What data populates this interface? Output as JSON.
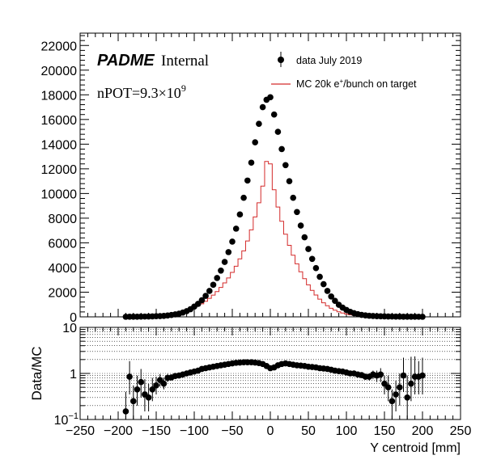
{
  "chart_data": [
    {
      "type": "scatter",
      "panel": "main",
      "xlim": [
        -250,
        250
      ],
      "ylim": [
        0,
        23000
      ],
      "y_ticks": [
        0,
        2000,
        4000,
        6000,
        8000,
        10000,
        12000,
        14000,
        16000,
        18000,
        20000,
        22000
      ],
      "labels": {
        "brand": "PADME",
        "internal": "Internal",
        "npot_prefix": "nPOT=9.3×10",
        "npot_exp": "9"
      },
      "legend": {
        "placement": "top-right",
        "data_label": "data July 2019",
        "mc_label_pre": "MC 20k e",
        "mc_label_sup": "+",
        "mc_label_post": "/bunch on target"
      },
      "series": [
        {
          "name": "data July 2019",
          "style": "markers",
          "color": "#000000",
          "x": [
            -190,
            -185,
            -180,
            -175,
            -170,
            -165,
            -160,
            -155,
            -150,
            -145,
            -140,
            -135,
            -130,
            -125,
            -120,
            -115,
            -110,
            -105,
            -100,
            -95,
            -90,
            -85,
            -80,
            -75,
            -70,
            -65,
            -60,
            -55,
            -50,
            -45,
            -40,
            -35,
            -30,
            -25,
            -20,
            -15,
            -10,
            -5,
            0,
            5,
            10,
            15,
            20,
            25,
            30,
            35,
            40,
            45,
            50,
            55,
            60,
            65,
            70,
            75,
            80,
            85,
            90,
            95,
            100,
            105,
            110,
            115,
            120,
            125,
            130,
            135,
            140,
            145,
            150,
            155,
            160,
            165,
            170,
            175,
            180,
            185,
            190,
            195,
            200
          ],
          "y": [
            8,
            10,
            12,
            15,
            20,
            25,
            30,
            40,
            50,
            60,
            80,
            110,
            150,
            200,
            260,
            350,
            460,
            620,
            830,
            1050,
            1350,
            1700,
            2100,
            2600,
            3150,
            3750,
            4450,
            5250,
            6100,
            7150,
            8300,
            9650,
            11050,
            12500,
            14150,
            15650,
            17000,
            17600,
            17800,
            16400,
            15000,
            13600,
            12300,
            11000,
            9650,
            8500,
            7400,
            6450,
            5500,
            4700,
            3950,
            3250,
            2650,
            2100,
            1650,
            1300,
            980,
            750,
            560,
            410,
            300,
            220,
            160,
            120,
            90,
            70,
            55,
            45,
            38,
            30,
            25,
            22,
            18,
            15,
            13,
            11,
            10,
            9,
            8
          ]
        },
        {
          "name": "MC 20k e+/bunch on target",
          "style": "step",
          "color": "#d42a2a",
          "x": [
            -190,
            -185,
            -180,
            -175,
            -170,
            -165,
            -160,
            -155,
            -150,
            -145,
            -140,
            -135,
            -130,
            -125,
            -120,
            -115,
            -110,
            -105,
            -100,
            -95,
            -90,
            -85,
            -80,
            -75,
            -70,
            -65,
            -60,
            -55,
            -50,
            -45,
            -40,
            -35,
            -30,
            -25,
            -20,
            -15,
            -10,
            -5,
            0,
            5,
            10,
            15,
            20,
            25,
            30,
            35,
            40,
            45,
            50,
            55,
            60,
            65,
            70,
            75,
            80,
            85,
            90,
            95,
            100,
            105,
            110,
            115,
            120,
            125,
            130,
            135,
            140,
            145,
            150,
            155,
            160,
            165,
            170,
            175,
            180,
            185,
            190,
            195,
            200
          ],
          "y": [
            10,
            12,
            14,
            18,
            22,
            28,
            34,
            42,
            55,
            70,
            90,
            120,
            160,
            210,
            280,
            360,
            460,
            580,
            720,
            880,
            1060,
            1260,
            1500,
            1760,
            2050,
            2380,
            2750,
            3150,
            3600,
            4100,
            4700,
            5350,
            6150,
            7050,
            8100,
            9250,
            10600,
            12600,
            12400,
            10300,
            8900,
            7750,
            6700,
            5800,
            5000,
            4300,
            3650,
            3100,
            2600,
            2150,
            1770,
            1430,
            1140,
            900,
            700,
            540,
            410,
            310,
            230,
            170,
            120,
            90,
            65,
            48,
            36,
            28,
            22,
            18,
            15,
            13,
            11,
            10,
            9,
            8,
            8,
            7,
            7,
            6,
            6
          ]
        }
      ]
    },
    {
      "type": "scatter",
      "panel": "ratio",
      "xlabel": "Y centroid [mm]",
      "ylabel": "Data/MC",
      "xlim": [
        -250,
        250
      ],
      "ylim": [
        0.1,
        10
      ],
      "yscale": "log",
      "grid": true,
      "x_ticks": [
        -250,
        -200,
        -150,
        -100,
        -50,
        0,
        50,
        100,
        150,
        200,
        250
      ],
      "y_ticks": [
        {
          "value": 0.1,
          "base": "10",
          "exp": "−1"
        },
        {
          "value": 1,
          "base": "1",
          "exp": ""
        },
        {
          "value": 10,
          "base": "10",
          "exp": ""
        }
      ],
      "series": [
        {
          "name": "Data/MC",
          "color": "#000000",
          "x": [
            -190,
            -185,
            -180,
            -175,
            -170,
            -165,
            -160,
            -155,
            -150,
            -145,
            -140,
            -135,
            -130,
            -125,
            -120,
            -115,
            -110,
            -105,
            -100,
            -95,
            -90,
            -85,
            -80,
            -75,
            -70,
            -65,
            -60,
            -55,
            -50,
            -45,
            -40,
            -35,
            -30,
            -25,
            -20,
            -15,
            -10,
            -5,
            0,
            5,
            10,
            15,
            20,
            25,
            30,
            35,
            40,
            45,
            50,
            55,
            60,
            65,
            70,
            75,
            80,
            85,
            90,
            95,
            100,
            105,
            110,
            115,
            120,
            125,
            130,
            135,
            140,
            145,
            150,
            155,
            160,
            165,
            170,
            175,
            180,
            185,
            190,
            195,
            200
          ],
          "y": [
            0.15,
            0.85,
            0.25,
            0.45,
            0.65,
            0.35,
            0.3,
            0.45,
            0.55,
            0.72,
            0.6,
            0.8,
            0.82,
            0.88,
            0.9,
            0.95,
            1.0,
            1.05,
            1.1,
            1.15,
            1.25,
            1.3,
            1.35,
            1.4,
            1.45,
            1.5,
            1.55,
            1.6,
            1.65,
            1.7,
            1.72,
            1.75,
            1.75,
            1.75,
            1.72,
            1.68,
            1.6,
            1.45,
            1.3,
            1.35,
            1.5,
            1.6,
            1.65,
            1.6,
            1.55,
            1.5,
            1.48,
            1.45,
            1.4,
            1.38,
            1.35,
            1.3,
            1.28,
            1.25,
            1.2,
            1.15,
            1.12,
            1.1,
            1.05,
            1.0,
            1.0,
            0.95,
            0.92,
            0.85,
            0.85,
            0.95,
            0.9,
            0.95,
            0.6,
            0.5,
            0.25,
            0.35,
            0.5,
            0.9,
            0.3,
            0.6,
            0.85,
            0.85,
            0.9
          ],
          "err_low": [
            0.1,
            0.5,
            0.15,
            0.25,
            0.35,
            0.2,
            0.15,
            0.2,
            0.2,
            0.2,
            0.15,
            0.15,
            0.1,
            0.08,
            0.06,
            0.05,
            0.04,
            0.03,
            0.02,
            0.02,
            0.02,
            0.02,
            0.02,
            0.02,
            0.02,
            0.02,
            0.02,
            0.02,
            0.02,
            0.02,
            0.02,
            0.02,
            0.02,
            0.02,
            0.02,
            0.02,
            0.02,
            0.02,
            0.02,
            0.02,
            0.02,
            0.02,
            0.02,
            0.02,
            0.02,
            0.02,
            0.02,
            0.02,
            0.02,
            0.02,
            0.02,
            0.02,
            0.02,
            0.02,
            0.02,
            0.02,
            0.03,
            0.03,
            0.04,
            0.05,
            0.06,
            0.08,
            0.1,
            0.12,
            0.15,
            0.2,
            0.25,
            0.3,
            0.25,
            0.25,
            0.15,
            0.2,
            0.3,
            0.5,
            0.2,
            0.35,
            0.5,
            0.5,
            0.55
          ],
          "err_high": [
            0.25,
            1.0,
            0.3,
            0.45,
            0.6,
            0.4,
            0.3,
            0.35,
            0.3,
            0.25,
            0.2,
            0.18,
            0.12,
            0.09,
            0.07,
            0.05,
            0.04,
            0.03,
            0.02,
            0.02,
            0.02,
            0.02,
            0.02,
            0.02,
            0.02,
            0.02,
            0.02,
            0.02,
            0.02,
            0.02,
            0.02,
            0.02,
            0.02,
            0.02,
            0.02,
            0.02,
            0.02,
            0.02,
            0.02,
            0.02,
            0.02,
            0.02,
            0.02,
            0.02,
            0.02,
            0.02,
            0.02,
            0.02,
            0.02,
            0.02,
            0.02,
            0.02,
            0.02,
            0.02,
            0.02,
            0.02,
            0.03,
            0.03,
            0.04,
            0.05,
            0.06,
            0.08,
            0.1,
            0.12,
            0.15,
            0.2,
            0.25,
            0.35,
            0.3,
            0.4,
            0.2,
            0.35,
            0.5,
            1.3,
            0.6,
            1.7,
            1.5,
            1.0,
            1.3
          ]
        }
      ]
    }
  ]
}
